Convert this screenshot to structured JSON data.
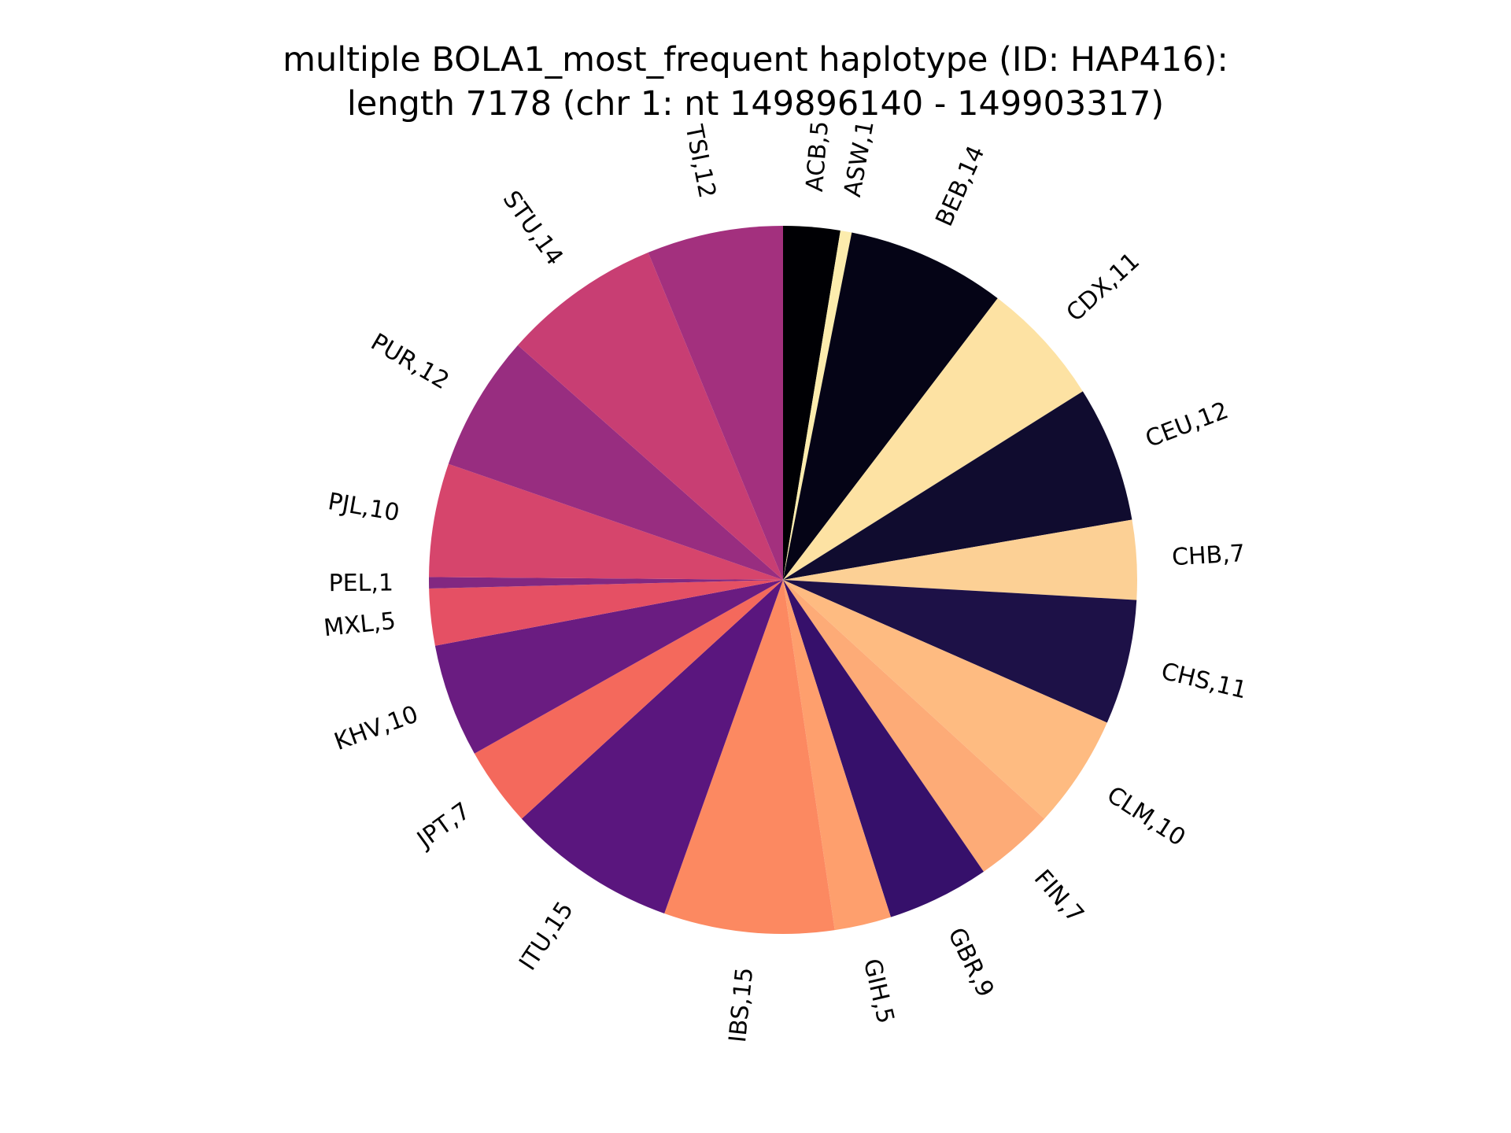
{
  "chart_data": {
    "type": "pie",
    "title_lines": [
      "multiple BOLA1_most_frequent haplotype (ID: HAP416):",
      "length 7178 (chr 1: nt 149896140 - 149903317)"
    ],
    "start_angle_deg": 90,
    "direction": "clockwise",
    "label_format": "{label},{value}",
    "slices": [
      {
        "label": "ACB",
        "value": 5,
        "color": "#000004"
      },
      {
        "label": "ASW",
        "value": 1,
        "color": "#fcecad"
      },
      {
        "label": "BEB",
        "value": 14,
        "color": "#050416"
      },
      {
        "label": "CDX",
        "value": 11,
        "color": "#fde2a3"
      },
      {
        "label": "CEU",
        "value": 12,
        "color": "#100c2f"
      },
      {
        "label": "CHB",
        "value": 7,
        "color": "#fcd095"
      },
      {
        "label": "CHS",
        "value": 11,
        "color": "#1d1147"
      },
      {
        "label": "CLM",
        "value": 10,
        "color": "#febb81"
      },
      {
        "label": "FIN",
        "value": 7,
        "color": "#fdab77"
      },
      {
        "label": "GBR",
        "value": 9,
        "color": "#36106b"
      },
      {
        "label": "GIH",
        "value": 5,
        "color": "#fe9f6d"
      },
      {
        "label": "IBS",
        "value": 15,
        "color": "#fc8961"
      },
      {
        "label": "ITU",
        "value": 15,
        "color": "#5a167e"
      },
      {
        "label": "JPT",
        "value": 7,
        "color": "#f4695c"
      },
      {
        "label": "KHV",
        "value": 10,
        "color": "#6a1c81"
      },
      {
        "label": "MXL",
        "value": 5,
        "color": "#e55064"
      },
      {
        "label": "PEL",
        "value": 1,
        "color": "#822881"
      },
      {
        "label": "PJL",
        "value": 10,
        "color": "#d6456c"
      },
      {
        "label": "PUR",
        "value": 12,
        "color": "#982d80"
      },
      {
        "label": "STU",
        "value": 14,
        "color": "#c83e73"
      },
      {
        "label": "TSI",
        "value": 12,
        "color": "#a3307e"
      }
    ]
  }
}
